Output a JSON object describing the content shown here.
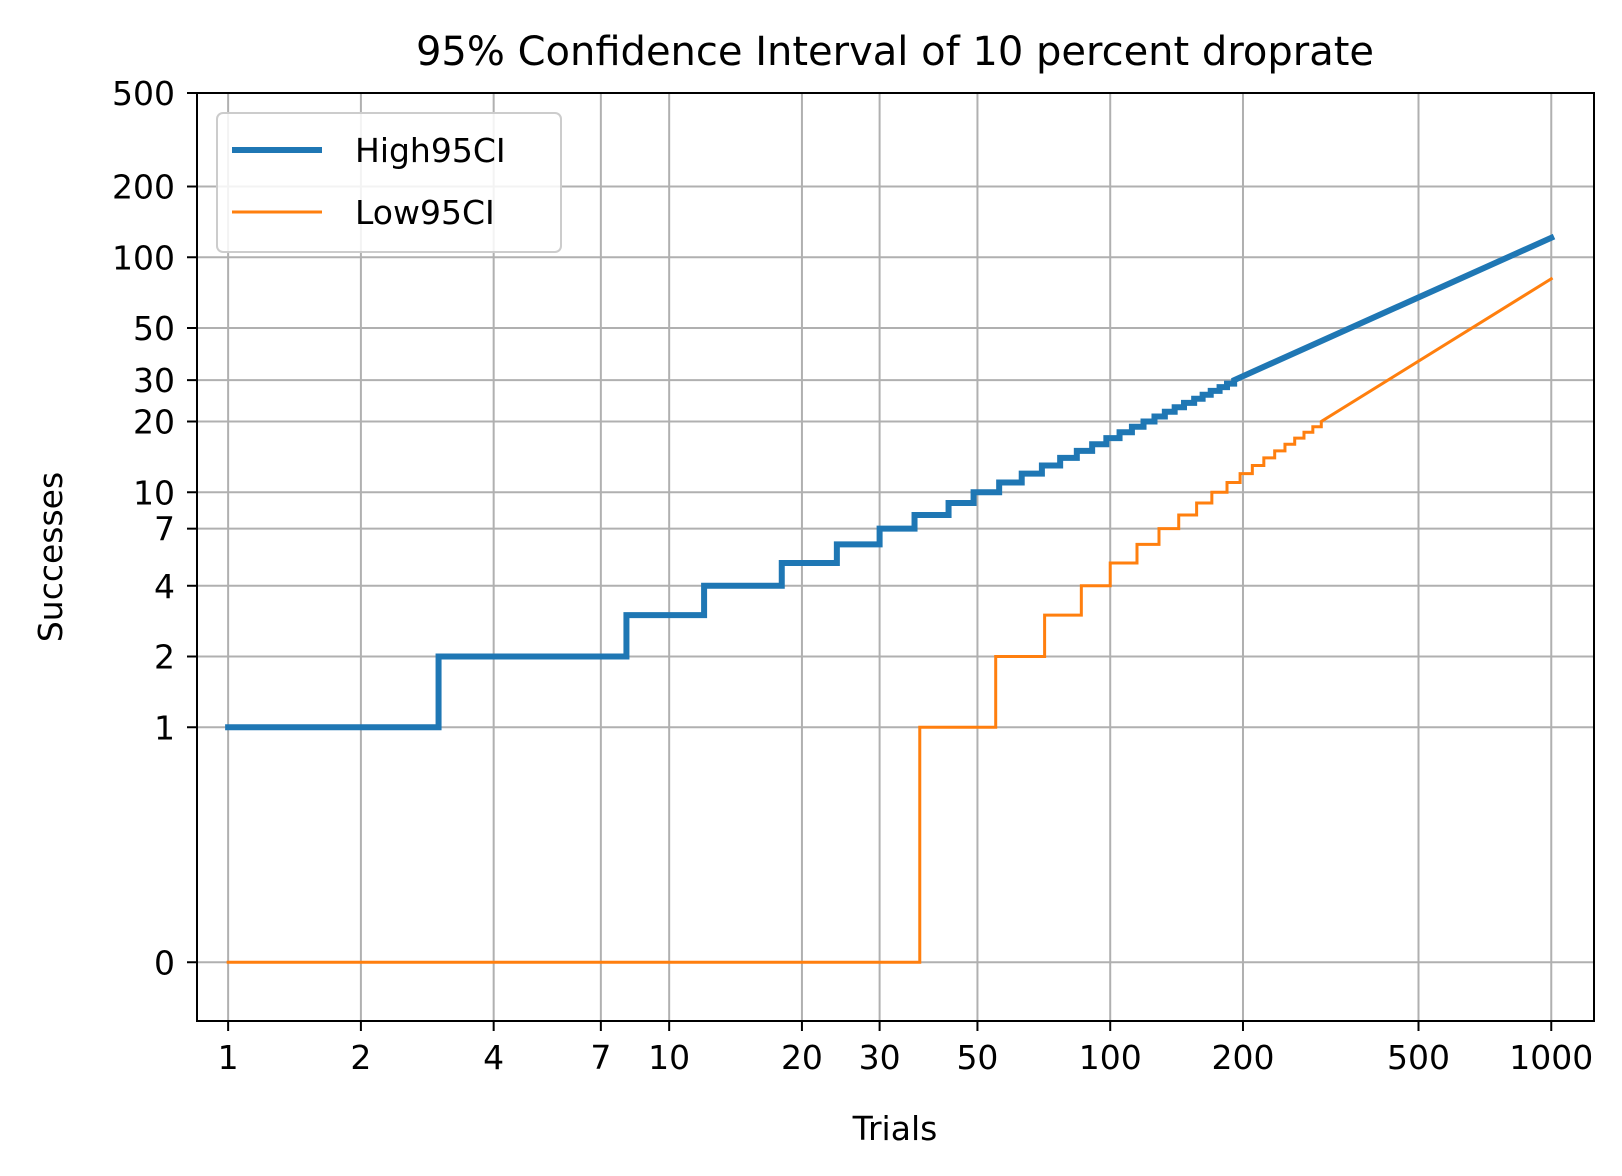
{
  "chart_data": {
    "type": "line",
    "title": "95% Confidence Interval of 10 percent droprate",
    "xlabel": "Trials",
    "ylabel": "Successes",
    "x_scale": "log",
    "y_scale": "symlog",
    "xlim": [
      0.85,
      1250
    ],
    "ylim": [
      -0.25,
      500
    ],
    "x_ticks": [
      1,
      2,
      4,
      7,
      10,
      20,
      30,
      50,
      100,
      200,
      500,
      1000
    ],
    "x_tick_labels": [
      "1",
      "2",
      "4",
      "7",
      "10",
      "20",
      "30",
      "50",
      "100",
      "200",
      "500",
      "1000"
    ],
    "y_ticks": [
      0,
      1,
      2,
      4,
      7,
      10,
      20,
      30,
      50,
      100,
      200,
      500
    ],
    "y_tick_labels": [
      "0",
      "1",
      "2",
      "4",
      "7",
      "10",
      "20",
      "30",
      "50",
      "100",
      "200",
      "500"
    ],
    "grid": true,
    "legend_position": "top-left",
    "series": [
      {
        "name": "High95CI",
        "color": "#1f77b4",
        "points": [
          [
            1,
            1
          ],
          [
            3,
            1
          ],
          [
            3,
            2
          ],
          [
            8,
            2
          ],
          [
            8,
            3
          ],
          [
            12,
            3
          ],
          [
            12,
            4
          ],
          [
            18,
            4
          ],
          [
            18,
            5
          ],
          [
            24,
            5
          ],
          [
            24,
            6
          ],
          [
            30,
            6
          ],
          [
            30,
            7
          ],
          [
            36,
            7
          ],
          [
            36,
            8
          ],
          [
            43,
            8
          ],
          [
            43,
            9
          ],
          [
            49,
            9
          ],
          [
            49,
            10
          ],
          [
            56,
            10
          ],
          [
            56,
            11
          ],
          [
            63,
            11
          ],
          [
            63,
            12
          ],
          [
            70,
            12
          ],
          [
            70,
            13
          ],
          [
            77,
            13
          ],
          [
            77,
            14
          ],
          [
            84,
            14
          ],
          [
            84,
            15
          ],
          [
            91,
            15
          ],
          [
            91,
            16
          ],
          [
            98,
            16
          ],
          [
            98,
            17
          ],
          [
            105,
            17
          ],
          [
            105,
            18
          ],
          [
            112,
            18
          ],
          [
            112,
            19
          ],
          [
            119,
            19
          ],
          [
            119,
            20
          ],
          [
            126,
            20
          ],
          [
            126,
            21
          ],
          [
            133,
            21
          ],
          [
            133,
            22
          ],
          [
            140,
            22
          ],
          [
            140,
            23
          ],
          [
            147,
            23
          ],
          [
            147,
            24
          ],
          [
            155,
            24
          ],
          [
            155,
            25
          ],
          [
            162,
            25
          ],
          [
            162,
            26
          ],
          [
            169,
            26
          ],
          [
            169,
            27
          ],
          [
            177,
            27
          ],
          [
            177,
            28
          ],
          [
            184,
            28
          ],
          [
            184,
            29
          ],
          [
            191,
            29
          ],
          [
            191,
            30
          ],
          [
            1000,
            121
          ]
        ]
      },
      {
        "name": "Low95CI",
        "color": "#ff7f0e",
        "points": [
          [
            1,
            0
          ],
          [
            37,
            0
          ],
          [
            37,
            1
          ],
          [
            55,
            1
          ],
          [
            55,
            2
          ],
          [
            71,
            2
          ],
          [
            71,
            3
          ],
          [
            86,
            3
          ],
          [
            86,
            4
          ],
          [
            100,
            4
          ],
          [
            100,
            5
          ],
          [
            115,
            5
          ],
          [
            115,
            6
          ],
          [
            129,
            6
          ],
          [
            129,
            7
          ],
          [
            143,
            7
          ],
          [
            143,
            8
          ],
          [
            157,
            8
          ],
          [
            157,
            9
          ],
          [
            170,
            9
          ],
          [
            170,
            10
          ],
          [
            184,
            10
          ],
          [
            184,
            11
          ],
          [
            197,
            11
          ],
          [
            197,
            12
          ],
          [
            210,
            12
          ],
          [
            210,
            13
          ],
          [
            223,
            13
          ],
          [
            223,
            14
          ],
          [
            236,
            14
          ],
          [
            236,
            15
          ],
          [
            249,
            15
          ],
          [
            249,
            16
          ],
          [
            262,
            16
          ],
          [
            262,
            17
          ],
          [
            275,
            17
          ],
          [
            275,
            18
          ],
          [
            288,
            18
          ],
          [
            288,
            19
          ],
          [
            301,
            19
          ],
          [
            301,
            20
          ],
          [
            1000,
            81
          ]
        ]
      }
    ]
  }
}
